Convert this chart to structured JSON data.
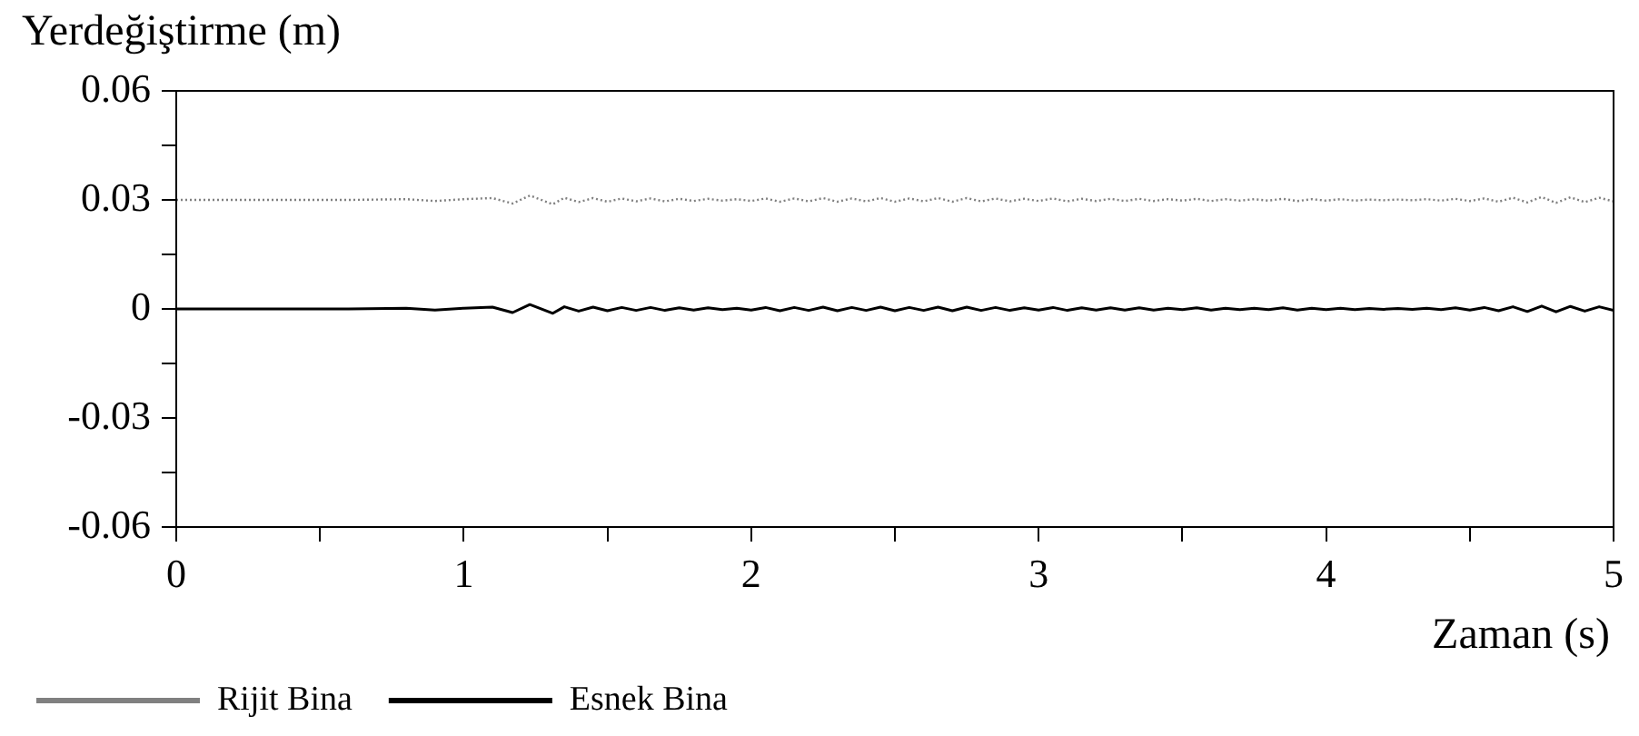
{
  "chart_data": {
    "type": "line",
    "xlabel": "Zaman (s)",
    "ylabel": "Yerdeğiştirme (m)",
    "x": [
      0,
      0.3,
      0.6,
      0.8,
      0.9,
      1.0,
      1.1,
      1.17,
      1.23,
      1.31,
      1.35,
      1.4,
      1.45,
      1.5,
      1.55,
      1.6,
      1.65,
      1.7,
      1.75,
      1.8,
      1.85,
      1.9,
      1.95,
      2.0,
      2.05,
      2.1,
      2.15,
      2.2,
      2.25,
      2.3,
      2.35,
      2.4,
      2.45,
      2.5,
      2.55,
      2.6,
      2.65,
      2.7,
      2.75,
      2.8,
      2.85,
      2.9,
      2.95,
      3.0,
      3.05,
      3.1,
      3.15,
      3.2,
      3.25,
      3.3,
      3.35,
      3.4,
      3.45,
      3.5,
      3.55,
      3.6,
      3.65,
      3.7,
      3.75,
      3.8,
      3.85,
      3.9,
      3.95,
      4.0,
      4.05,
      4.1,
      4.15,
      4.2,
      4.25,
      4.3,
      4.35,
      4.4,
      4.45,
      4.5,
      4.55,
      4.6,
      4.65,
      4.7,
      4.75,
      4.8,
      4.85,
      4.9,
      4.95,
      5.0
    ],
    "series": [
      {
        "name": "Rijit Bina",
        "color": "#808080",
        "line_style": "dotted",
        "values": [
          0.03,
          0.03,
          0.03,
          0.0302,
          0.0297,
          0.0302,
          0.0305,
          0.029,
          0.0312,
          0.0288,
          0.0306,
          0.0294,
          0.0305,
          0.0295,
          0.0304,
          0.0296,
          0.0304,
          0.0296,
          0.0303,
          0.0297,
          0.0303,
          0.0298,
          0.0302,
          0.0297,
          0.0304,
          0.0295,
          0.0304,
          0.0296,
          0.0305,
          0.0295,
          0.0304,
          0.0296,
          0.0305,
          0.0295,
          0.0304,
          0.0296,
          0.0305,
          0.0295,
          0.0305,
          0.0296,
          0.0304,
          0.0296,
          0.0303,
          0.0297,
          0.0304,
          0.0296,
          0.0303,
          0.0297,
          0.0303,
          0.0297,
          0.0303,
          0.0297,
          0.0302,
          0.0298,
          0.0303,
          0.0297,
          0.0302,
          0.0298,
          0.0302,
          0.0298,
          0.0303,
          0.0297,
          0.0302,
          0.0298,
          0.0302,
          0.0298,
          0.0301,
          0.0299,
          0.0301,
          0.0299,
          0.0302,
          0.0298,
          0.0303,
          0.0297,
          0.0304,
          0.0295,
          0.0306,
          0.0293,
          0.0308,
          0.0292,
          0.0307,
          0.0294,
          0.0306,
          0.0296
        ]
      },
      {
        "name": "Esnek Bina",
        "color": "#000000",
        "line_style": "solid",
        "values": [
          0,
          0,
          0,
          0.0002,
          -0.0003,
          0.0002,
          0.0005,
          -0.001,
          0.0012,
          -0.0012,
          0.0006,
          -0.0006,
          0.0005,
          -0.0005,
          0.0004,
          -0.0004,
          0.0004,
          -0.0004,
          0.0003,
          -0.0003,
          0.0003,
          -0.0002,
          0.0002,
          -0.0003,
          0.0004,
          -0.0005,
          0.0004,
          -0.0004,
          0.0005,
          -0.0005,
          0.0004,
          -0.0004,
          0.0005,
          -0.0005,
          0.0004,
          -0.0004,
          0.0005,
          -0.0005,
          0.0005,
          -0.0004,
          0.0004,
          -0.0004,
          0.0003,
          -0.0003,
          0.0004,
          -0.0004,
          0.0003,
          -0.0003,
          0.0003,
          -0.0003,
          0.0003,
          -0.0003,
          0.0002,
          -0.0002,
          0.0003,
          -0.0003,
          0.0002,
          -0.0002,
          0.0002,
          -0.0002,
          0.0003,
          -0.0003,
          0.0002,
          -0.0002,
          0.0002,
          -0.0002,
          0.0001,
          -0.0001,
          0.0001,
          -0.0001,
          0.0002,
          -0.0002,
          0.0003,
          -0.0003,
          0.0004,
          -0.0005,
          0.0006,
          -0.0007,
          0.0008,
          -0.0008,
          0.0007,
          -0.0006,
          0.0006,
          -0.0004
        ]
      }
    ],
    "xlim": [
      0,
      5
    ],
    "xticks": [
      0,
      {
        "value": 0.5,
        "label": null
      },
      1,
      {
        "value": 1.5,
        "label": null
      },
      2,
      {
        "value": 2.5,
        "label": null
      },
      3,
      {
        "value": 3.5,
        "label": null
      },
      4,
      {
        "value": 4.5,
        "label": null
      },
      5
    ],
    "ylim": [
      -0.06,
      0.06
    ],
    "yticks": [
      -0.06,
      {
        "value": -0.045,
        "label": null
      },
      -0.03,
      {
        "value": -0.015,
        "label": null
      },
      0,
      {
        "value": 0.015,
        "label": null
      },
      0.03,
      {
        "value": 0.045,
        "label": null
      },
      0.06
    ],
    "grid": false,
    "legend": "bottom",
    "marker": "none"
  }
}
